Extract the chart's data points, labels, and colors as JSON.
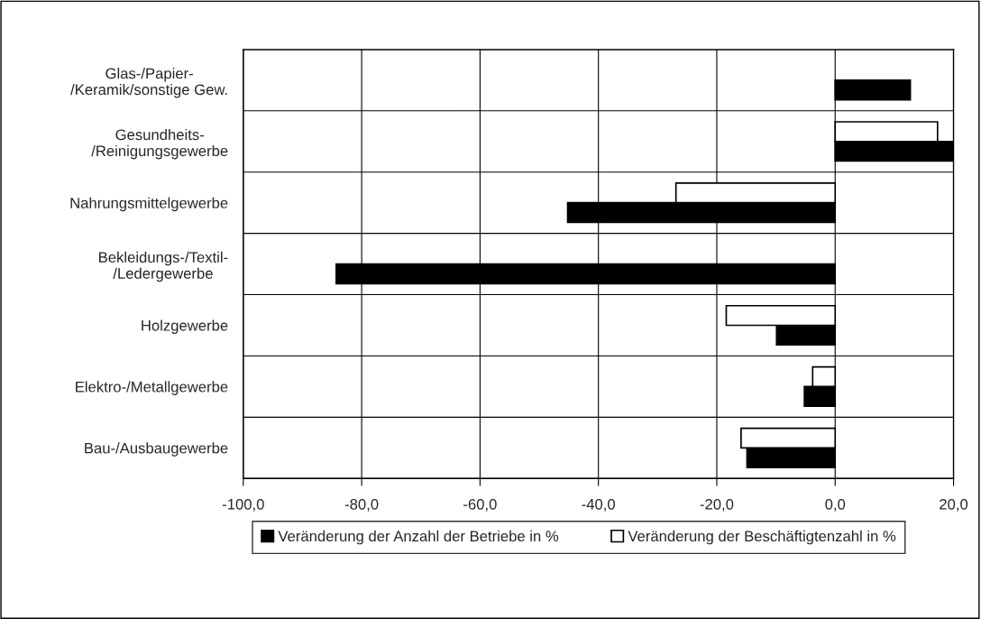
{
  "chart_data": {
    "type": "bar",
    "orientation": "horizontal",
    "categories": [
      "Glas-/Papier-\n/Keramik/sonstige Gew.",
      "Gesundheits-\n/Reinigungsgewerbe",
      "Nahrungsmittelgewerbe",
      "Bekleidungs-/Textil-\n/Ledergewerbe",
      "Holzgewerbe",
      "Elektro-/Metallgewerbe",
      "Bau-/Ausbaugewerbe"
    ],
    "series": [
      {
        "name": "Veränderung der Anzahl der Betriebe in %",
        "color": "#000000",
        "values": [
          12.7,
          20.0,
          -45.2,
          -84.3,
          -9.9,
          -5.2,
          -14.9
        ]
      },
      {
        "name": "Veränderung der Beschäftigtenzahl in %",
        "color": "#ffffff",
        "values": [
          null,
          17.3,
          -26.9,
          null,
          -18.4,
          -3.8,
          -15.9
        ]
      }
    ],
    "xlim": [
      -100,
      20
    ],
    "xticks": [
      {
        "value": -100,
        "label": "-100,0"
      },
      {
        "value": -80,
        "label": "-80,0"
      },
      {
        "value": -60,
        "label": "-60,0"
      },
      {
        "value": -40,
        "label": "-40,0"
      },
      {
        "value": -20,
        "label": "-20,0"
      },
      {
        "value": 0,
        "label": "0,0"
      },
      {
        "value": 20,
        "label": "20,0"
      }
    ],
    "grid": true,
    "legend": "bottom"
  }
}
